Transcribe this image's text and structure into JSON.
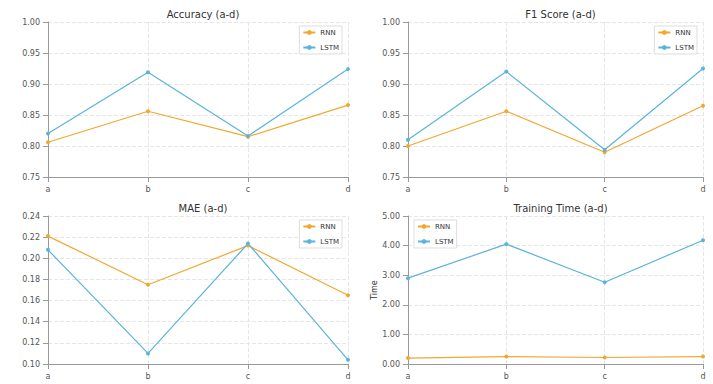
{
  "chart_data": [
    {
      "type": "line",
      "title": "Accuracy (a-d)",
      "categories": [
        "a",
        "b",
        "c",
        "d"
      ],
      "series": [
        {
          "name": "RNN",
          "color": "#f0a830",
          "values": [
            0.806,
            0.856,
            0.815,
            0.866
          ]
        },
        {
          "name": "LSTM",
          "color": "#5ab4dc",
          "values": [
            0.82,
            0.919,
            0.816,
            0.924
          ]
        }
      ],
      "ylim": [
        0.75,
        1.0
      ],
      "yticks": [
        0.75,
        {
          "value": 0.8,
          "label": "0.80"
        },
        0.85,
        {
          "value": 0.9,
          "label": "0.90"
        },
        0.95,
        {
          "value": 1.0,
          "label": "1.00"
        }
      ],
      "grid": true,
      "legend": "upper right"
    },
    {
      "type": "line",
      "title": "F1 Score (a-d)",
      "categories": [
        "a",
        "b",
        "c",
        "d"
      ],
      "series": [
        {
          "name": "RNN",
          "color": "#f0a830",
          "values": [
            0.8,
            0.856,
            0.79,
            0.865
          ]
        },
        {
          "name": "LSTM",
          "color": "#5ab4dc",
          "values": [
            0.81,
            0.92,
            0.794,
            0.925
          ]
        }
      ],
      "ylim": [
        0.75,
        1.0
      ],
      "yticks": [
        0.75,
        {
          "value": 0.8,
          "label": "0.80"
        },
        0.85,
        {
          "value": 0.9,
          "label": "0.90"
        },
        0.95,
        {
          "value": 1.0,
          "label": "1.00"
        }
      ],
      "grid": true,
      "legend": "upper right"
    },
    {
      "type": "line",
      "title": "MAE (a-d)",
      "categories": [
        "a",
        "b",
        "c",
        "d"
      ],
      "series": [
        {
          "name": "RNN",
          "color": "#f0a830",
          "values": [
            0.221,
            0.175,
            0.212,
            0.165
          ]
        },
        {
          "name": "LSTM",
          "color": "#5ab4dc",
          "values": [
            0.208,
            0.11,
            0.214,
            0.104
          ]
        }
      ],
      "ylim": [
        0.1,
        0.24
      ],
      "yticks": [
        {
          "value": 0.1,
          "label": "0.10"
        },
        0.12,
        0.14,
        0.16,
        0.18,
        {
          "value": 0.2,
          "label": "0.20"
        },
        0.22,
        0.24
      ],
      "grid": true,
      "legend": "upper right"
    },
    {
      "type": "line",
      "title": "Training Time (a-d)",
      "y_label": "Time",
      "categories": [
        "a",
        "b",
        "c",
        "d"
      ],
      "series": [
        {
          "name": "RNN",
          "color": "#f0a830",
          "values": [
            0.2,
            0.25,
            0.22,
            0.25
          ]
        },
        {
          "name": "LSTM",
          "color": "#5ab4dc",
          "values": [
            2.9,
            4.05,
            2.76,
            4.18
          ]
        }
      ],
      "ylim": [
        0,
        5
      ],
      "yticks": [
        {
          "value": 0,
          "label": "0.00"
        },
        {
          "value": 1,
          "label": "1.00"
        },
        {
          "value": 2,
          "label": "2.00"
        },
        {
          "value": 3,
          "label": "3.00"
        },
        {
          "value": 4,
          "label": "4.00"
        },
        {
          "value": 5,
          "label": "5.00"
        }
      ],
      "grid": true,
      "legend": "upper left"
    }
  ]
}
